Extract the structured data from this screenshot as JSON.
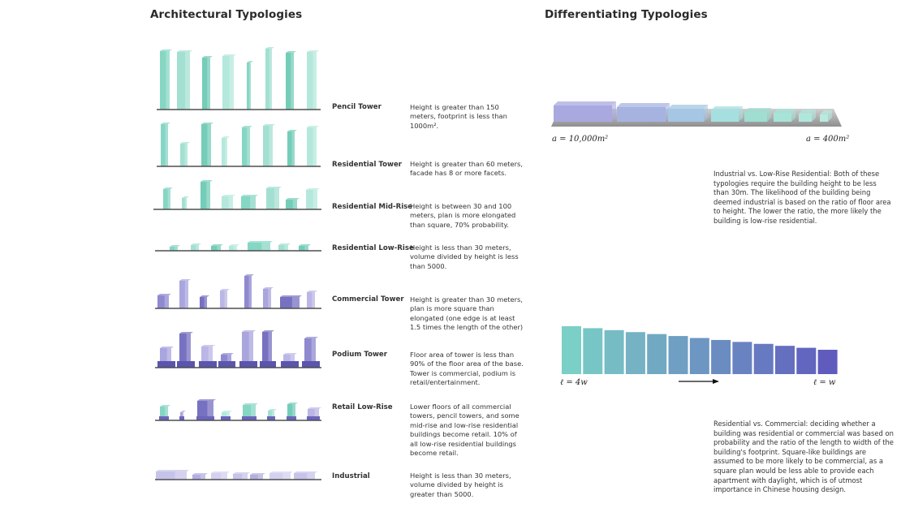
{
  "left": {
    "title": "Architectural Typologies",
    "rows": [
      {
        "name": "Pencil Tower",
        "desc": "Height is greater than 150 meters, footprint is less than 1000m²."
      },
      {
        "name": "Residential Tower",
        "desc": "Height is greater than 60 meters, facade has 8 or more facets."
      },
      {
        "name": "Residential Mid-Rise",
        "desc": "Height is between 30 and 100 meters, plan is more elongated than square, 70% probability."
      },
      {
        "name": "Residential Low-Rise",
        "desc": "Height is less than 30 meters, volume divided by height is less than 5000."
      },
      {
        "name": "Commercial Tower",
        "desc": "Height is greater than 30 meters, plan is more square than elongated (one edge is at least 1.5 times the length of the other)"
      },
      {
        "name": "Podium Tower",
        "desc": "Floor area of tower is less than 90% of the floor area of the base. Tower is commercial, podium is retail/entertainment."
      },
      {
        "name": "Retail Low-Rise",
        "desc": "Lower floors of all commercial towers, pencil towers, and some mid-rise and low-rise residential buildings become retail. 10% of all low-rise residential buildings become retail."
      },
      {
        "name": "Industrial",
        "desc": "Height is less than 30 meters, volume divided by height is greater than 5000."
      }
    ]
  },
  "right": {
    "title": "Differentiating Typologies",
    "area_left": "a = 10,000m²",
    "area_right": "a = 400m²",
    "para1": "Industrial vs. Low-Rise Residential: Both of these typologies require the building height to be less than 30m. The likelihood of the building being deemed industrial is based on the ratio of floor area to height. The lower the ratio, the more likely the building is low-rise residential.",
    "len_left": "ℓ = 4w",
    "len_right": "ℓ = w",
    "para2": "Residential vs. Commercial: deciding whether a building was residential or commercial was based on probability and the ratio of the length to width of the building's footprint. Square-like buildings are assumed to be more likely to be commercial, as a square plan would be less able to provide each apartment with daylight, which is of utmost importance in Chinese housing design."
  },
  "colors": {
    "teal": "#8fd8c8",
    "mint": "#b9e8dc",
    "purple": "#a7a3dc",
    "deep_purple": "#6a63b8",
    "ground": "#555555"
  }
}
